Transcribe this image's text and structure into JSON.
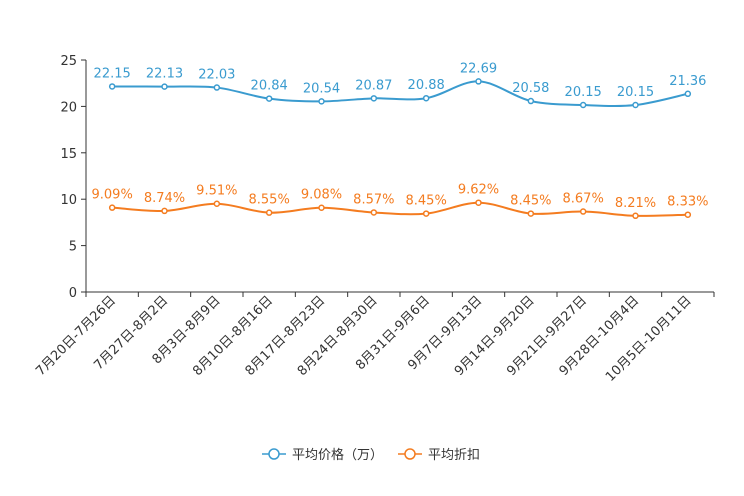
{
  "chart_data": {
    "type": "line",
    "title": "",
    "xlabel": "",
    "ylabel": "",
    "ylim": [
      0,
      25
    ],
    "yticks": [
      0,
      5,
      10,
      15,
      20,
      25
    ],
    "grid": false,
    "legend_position": "bottom-center",
    "categories": [
      "7月20日-7月26日",
      "7月27日-8月2日",
      "8月3日-8月9日",
      "8月10日-8月16日",
      "8月17日-8月23日",
      "8月24日-8月30日",
      "8月31日-9月6日",
      "9月7日-9月13日",
      "9月14日-9月20日",
      "9月21日-9月27日",
      "9月28日-10月4日",
      "10月5日-10月11日"
    ],
    "series": [
      {
        "name": "平均价格（万）",
        "color": "#3a9bcf",
        "values": [
          22.15,
          22.13,
          22.03,
          20.84,
          20.54,
          20.87,
          20.88,
          22.69,
          20.58,
          20.15,
          20.15,
          21.36
        ],
        "labels": [
          "22.15",
          "22.13",
          "22.03",
          "20.84",
          "20.54",
          "20.87",
          "20.88",
          "22.69",
          "20.58",
          "20.15",
          "20.15",
          "21.36"
        ]
      },
      {
        "name": "平均折扣",
        "color": "#f47c20",
        "values": [
          9.09,
          8.74,
          9.51,
          8.55,
          9.08,
          8.57,
          8.45,
          9.62,
          8.45,
          8.67,
          8.21,
          8.33
        ],
        "labels": [
          "9.09%",
          "8.74%",
          "9.51%",
          "8.55%",
          "9.08%",
          "8.57%",
          "8.45%",
          "9.62%",
          "8.45%",
          "8.67%",
          "8.21%",
          "8.33%"
        ]
      }
    ]
  }
}
